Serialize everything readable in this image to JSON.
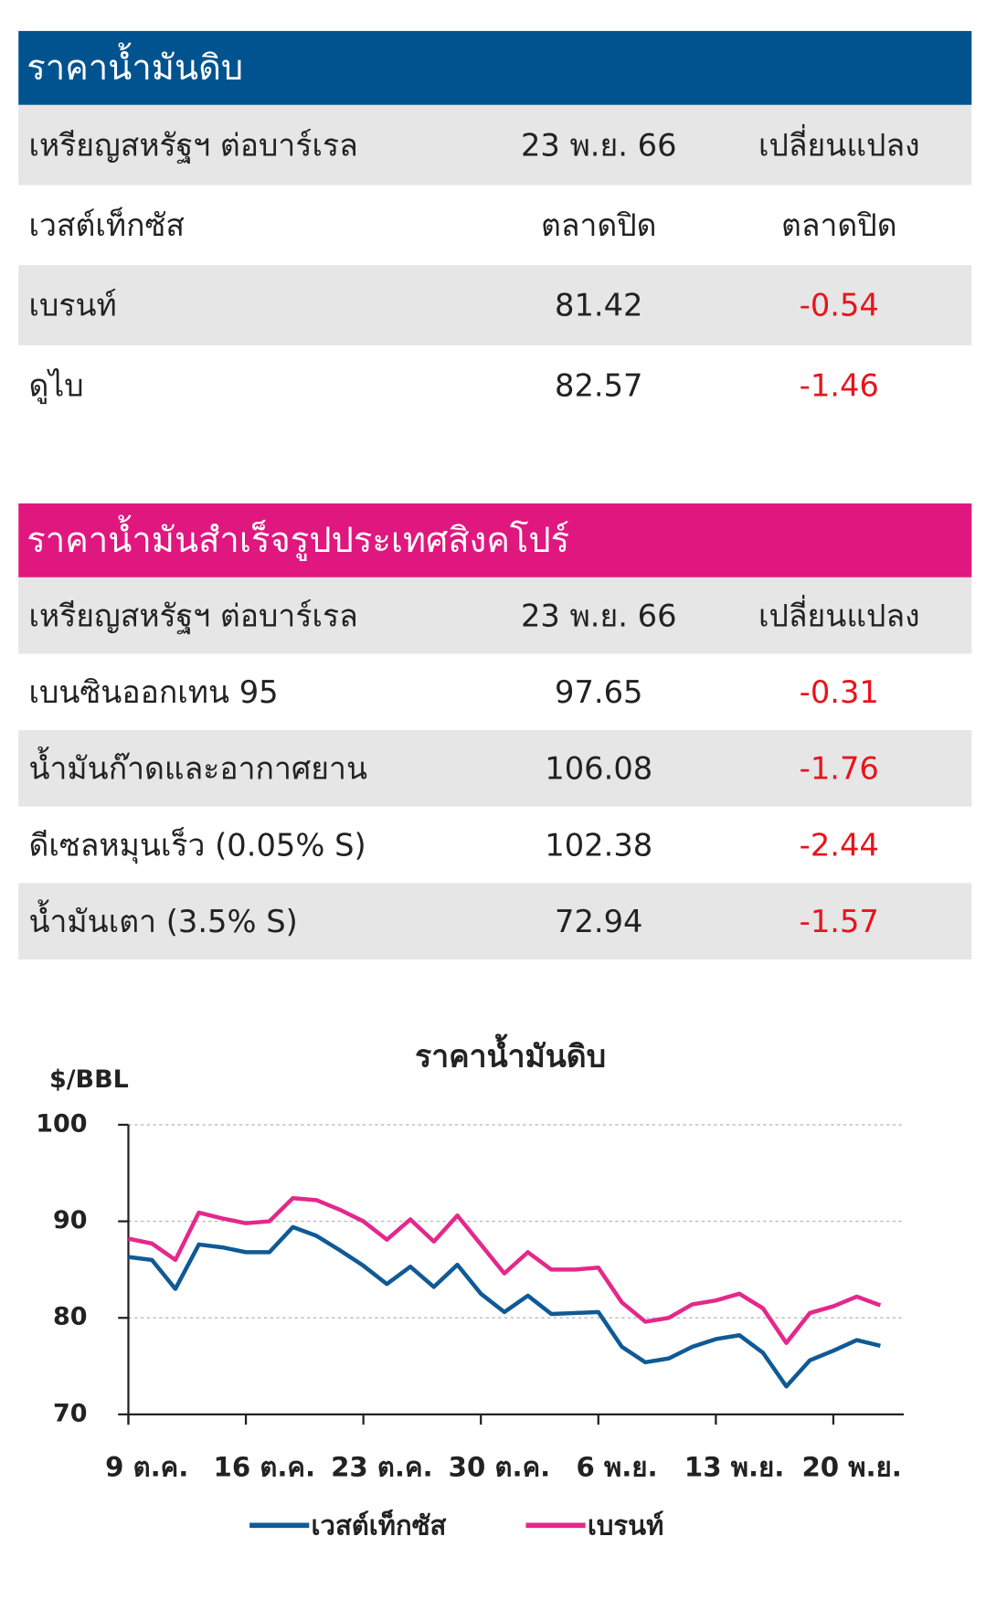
{
  "tables": [
    {
      "title": "ราคาน้ำมันดิบ",
      "rows": [
        [
          "เหรียญสหรัฐฯ ต่อบาร์เรล",
          "23 พ.ย. 66",
          "เปลี่ยนแปลง"
        ],
        [
          "เวสต์เท็กซัส",
          "ตลาดปิด",
          "ตลาดปิด"
        ],
        [
          "เบรนท์",
          "81.42",
          "-0.54"
        ],
        [
          "ดูไบ",
          "82.57",
          "-1.46"
        ]
      ]
    },
    {
      "title": "ราคาน้ำมันสำเร็จรูปประเทศสิงคโปร์",
      "rows": [
        [
          "เหรียญสหรัฐฯ ต่อบาร์เรล",
          "23 พ.ย. 66",
          "เปลี่ยนแปลง"
        ],
        [
          "เบนซินออกเทน 95",
          "97.65",
          "-0.31"
        ],
        [
          "น้ำมันก๊าดและอากาศยาน",
          "106.08",
          "-1.76"
        ],
        [
          "ดีเซลหมุนเร็ว (0.05% S)",
          "102.38",
          "-2.44"
        ],
        [
          "น้ำมันเตา (3.5% S)",
          "72.94",
          "-1.57"
        ]
      ]
    }
  ],
  "chart_data": {
    "type": "line",
    "title": "ราคาน้ำมันดิบ",
    "y_label": "$/BBL",
    "categories": [
      "9 ต.ค.",
      null,
      null,
      null,
      null,
      "16 ต.ค.",
      null,
      null,
      null,
      null,
      "23 ต.ค.",
      null,
      null,
      null,
      null,
      "30 ต.ค.",
      null,
      null,
      null,
      null,
      "6 พ.ย.",
      null,
      null,
      null,
      null,
      "13 พ.ย.",
      null,
      null,
      null,
      null,
      "20 พ.ย.",
      null,
      null
    ],
    "series": [
      {
        "name": "เวสต์เท็กซัส",
        "color": "#0f5a96",
        "values": [
          86.3,
          86.0,
          83.0,
          87.6,
          87.3,
          86.8,
          86.8,
          89.4,
          88.5,
          87.0,
          85.4,
          83.5,
          85.3,
          83.2,
          85.5,
          82.5,
          80.6,
          82.3,
          80.4,
          80.5,
          80.6,
          77.0,
          75.4,
          75.8,
          77.0,
          77.8,
          78.2,
          76.4,
          72.9,
          75.6,
          76.6,
          77.7,
          77.1
        ]
      },
      {
        "name": "เบรนท์",
        "color": "#e4288c",
        "values": [
          88.2,
          87.7,
          86.0,
          90.9,
          90.3,
          89.8,
          90.0,
          92.4,
          92.2,
          91.2,
          90.0,
          88.1,
          90.2,
          87.9,
          90.6,
          87.6,
          84.6,
          86.8,
          85.0,
          85.0,
          85.2,
          81.6,
          79.6,
          80.0,
          81.4,
          81.8,
          82.5,
          81.0,
          77.4,
          80.5,
          81.2,
          82.2,
          81.3
        ]
      }
    ],
    "ylim": [
      70,
      100
    ],
    "yticks": [
      70,
      80,
      90,
      100
    ],
    "grid": true,
    "legend": "bottom"
  }
}
